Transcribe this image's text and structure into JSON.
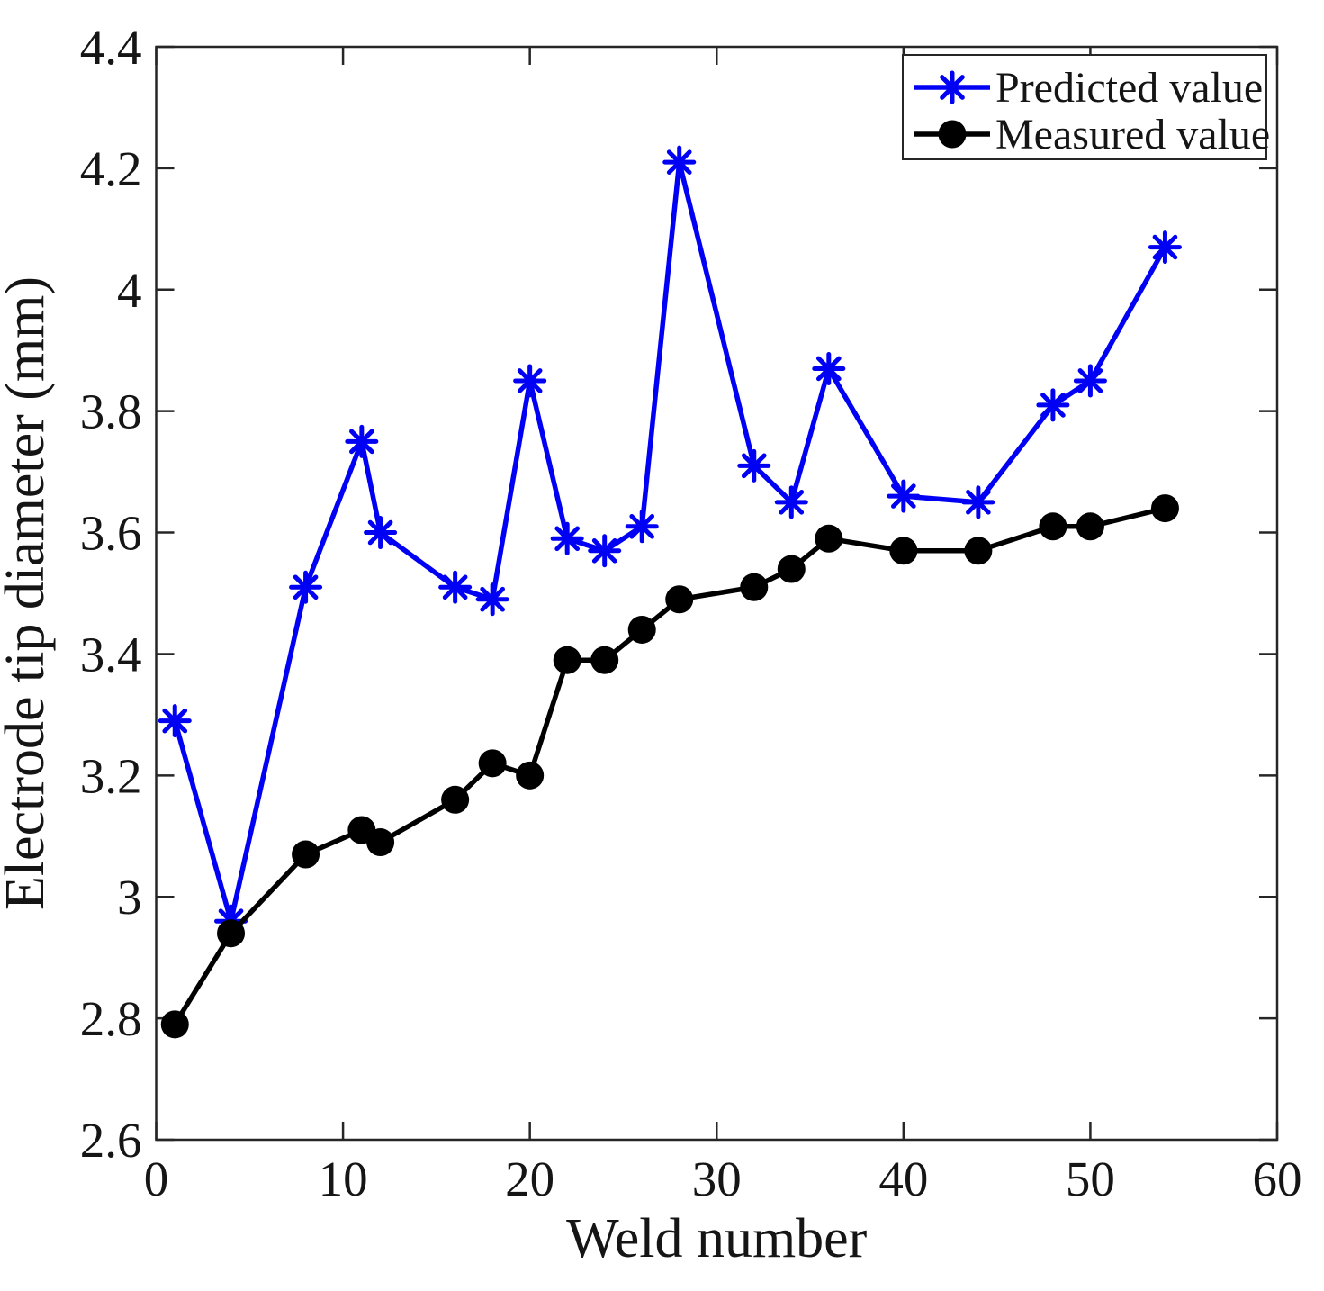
{
  "figure": {
    "background": "#ffffff",
    "axis_color": "#262626",
    "text_color": "#151515"
  },
  "chart_data": {
    "type": "line",
    "title": "",
    "xlabel": "Weld number",
    "ylabel": "Electrode tip diameter (mm)",
    "xlim": [
      0,
      60
    ],
    "ylim": [
      2.6,
      4.4
    ],
    "x_ticks": [
      0,
      10,
      20,
      30,
      40,
      50,
      60
    ],
    "y_ticks": [
      2.6,
      2.8,
      3,
      3.2,
      3.4,
      3.6,
      3.8,
      4,
      4.2,
      4.4
    ],
    "grid": "off",
    "legend_position": "top-right-inside",
    "x": [
      1,
      4,
      8,
      11,
      12,
      16,
      18,
      20,
      22,
      24,
      26,
      28,
      32,
      34,
      36,
      40,
      44,
      48,
      50,
      54
    ],
    "series": [
      {
        "name": "Predicted value",
        "color": "#0000f5",
        "marker": "asterisk",
        "values": [
          3.29,
          2.96,
          3.51,
          3.75,
          3.6,
          3.51,
          3.49,
          3.85,
          3.59,
          3.57,
          3.61,
          4.21,
          3.71,
          3.65,
          3.87,
          3.66,
          3.65,
          3.81,
          3.85,
          4.07
        ]
      },
      {
        "name": "Measured value",
        "color": "#000000",
        "marker": "circle",
        "values": [
          2.79,
          2.94,
          3.07,
          3.11,
          3.09,
          3.16,
          3.22,
          3.2,
          3.39,
          3.39,
          3.44,
          3.49,
          3.51,
          3.54,
          3.59,
          3.57,
          3.57,
          3.61,
          3.61,
          3.64
        ]
      }
    ]
  }
}
